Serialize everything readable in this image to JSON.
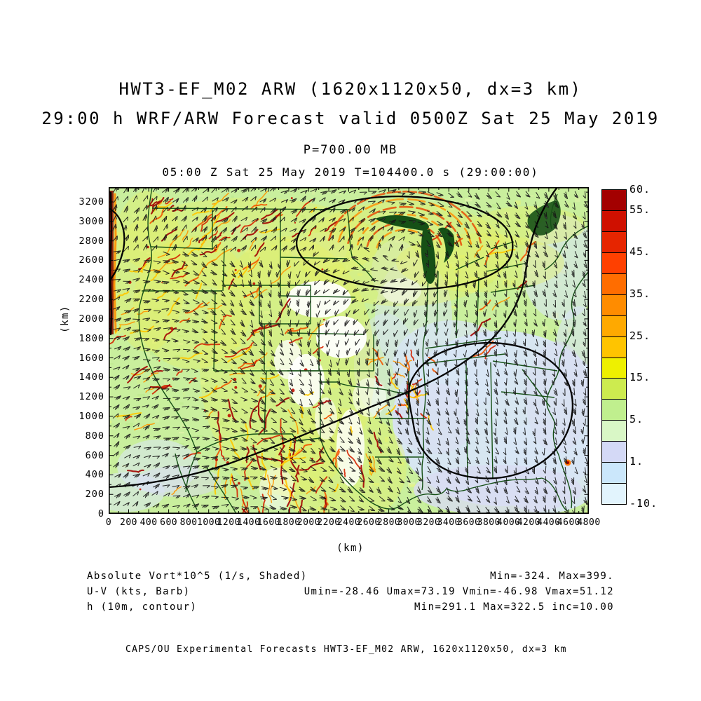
{
  "header": {
    "title_line1": "HWT3-EF_M02 ARW (1620x1120x50, dx=3 km)",
    "title_line2": "29:00 h WRF/ARW Forecast valid 0500Z Sat 25 May 2019",
    "pressure_label": "P=700.00 MB",
    "valid_time_label": "05:00 Z Sat 25 May 2019   T=104400.0 s (29:00:00)"
  },
  "chart_data": {
    "type": "heatmap",
    "description": "WRF/ARW 700 MB forecast map: shaded absolute vorticity, wind barbs, height contours over CONUS",
    "x_axis": {
      "label": "(km)",
      "min": 0,
      "max": 4800,
      "tick_step": 200,
      "ticks": [
        0,
        200,
        400,
        600,
        800,
        1000,
        1200,
        1400,
        1600,
        1800,
        2000,
        2200,
        2400,
        2600,
        2800,
        3000,
        3200,
        3400,
        3600,
        3800,
        4000,
        4200,
        4400,
        4600,
        4800
      ]
    },
    "y_axis": {
      "label": "(km)",
      "min": 0,
      "max": 3200,
      "tick_step": 200,
      "ticks": [
        3200,
        3000,
        2800,
        2600,
        2400,
        2200,
        2000,
        1800,
        1600,
        1400,
        1200,
        1000,
        800,
        600,
        400,
        200,
        0
      ]
    },
    "colorbar": {
      "cell_colors_top_to_bottom": [
        "#a30000",
        "#cf1000",
        "#e62500",
        "#ff4000",
        "#ff6d00",
        "#ff8c00",
        "#ffa900",
        "#ffc400",
        "#eef000",
        "#cdeb4f",
        "#c0ef8e",
        "#d9f7c6",
        "#d4d9f6",
        "#cbe7fb",
        "#e2f4fd"
      ],
      "labels": [
        {
          "text": "60.",
          "boundary": 0
        },
        {
          "text": "55.",
          "boundary": 1
        },
        {
          "text": "45.",
          "boundary": 3
        },
        {
          "text": "35.",
          "boundary": 5
        },
        {
          "text": "25.",
          "boundary": 7
        },
        {
          "text": "15.",
          "boundary": 9
        },
        {
          "text": "5.",
          "boundary": 11
        },
        {
          "text": "1.",
          "boundary": 13
        },
        {
          "text": "-10.",
          "boundary": 15
        }
      ],
      "outline_color": "#000000"
    },
    "fields": [
      {
        "name": "Absolute Vort*10^5 (1/s, Shaded)",
        "stats": "Min=-324. Max=399."
      },
      {
        "name": "U-V (kts, Barb)",
        "stats": "Umin=-28.46 Umax=73.19 Vmin=-46.98 Vmax=51.12"
      },
      {
        "name": "h (10m, contour)",
        "stats": "Min=291.1 Max=322.5 inc=10.00"
      }
    ],
    "shaded_stats": {
      "min": -324,
      "max": 399
    },
    "barb_stats": {
      "umin": -28.46,
      "umax": 73.19,
      "vmin": -46.98,
      "vmax": 51.12
    },
    "contour_stats": {
      "min": 291.1,
      "max": 322.5,
      "inc": 10.0
    },
    "map_colors": {
      "base_green": "#c9ef9d",
      "speckle_greens": [
        "#dcf3a4",
        "#e9f6ae",
        "#bce98a",
        "#e6f277",
        "#d2f08f"
      ],
      "pale_blue": "#d8e5f5",
      "lavender": "#d9dcf2",
      "white_patch": "#ffffff",
      "yellow_wash": "#e9f25e",
      "filament_palette": [
        "#ff9500",
        "#f25400",
        "#d42200",
        "#a30000",
        "#ffc800"
      ],
      "state_border_green": "#165016",
      "contour_black": "#000000",
      "barb_color": "#161616",
      "frame_color": "#000000"
    }
  },
  "footer": {
    "credit_line": "CAPS/OU Experimental Forecasts  HWT3-EF_M02 ARW, 1620x1120x50, dx=3 km"
  }
}
